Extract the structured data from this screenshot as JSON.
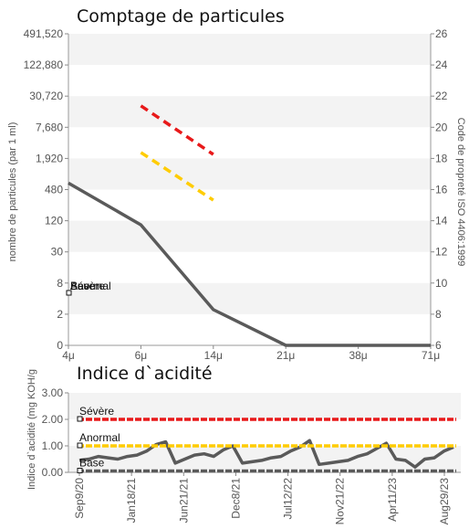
{
  "chart_data": [
    {
      "type": "line",
      "title": "Comptage de particules",
      "ylabel": "nombre de particules (par 1 ml)",
      "ylabel_right": "Code de propreté ISO 4406:1999",
      "categories": [
        "4μ",
        "6μ",
        "14μ",
        "21μ",
        "38μ",
        "71μ"
      ],
      "y_ticks": [
        "491,520",
        "122,880",
        "30,720",
        "7,680",
        "1,920",
        "480",
        "120",
        "30",
        "8",
        "2",
        "0"
      ],
      "y_right_ticks": [
        "26",
        "24",
        "22",
        "20",
        "18",
        "16",
        "14",
        "12",
        "10",
        "8",
        "6"
      ],
      "y_scale": "log4",
      "series": [
        {
          "name": "",
          "color": "#5a5a5a",
          "dashed": false,
          "values": [
            640,
            100,
            2.3,
            0,
            0,
            0
          ]
        },
        {
          "name": "",
          "color": "#e8191a",
          "dashed": true,
          "values": [
            null,
            20000,
            2300,
            null,
            null,
            null
          ]
        },
        {
          "name": "",
          "color": "#ffcc00",
          "dashed": true,
          "values": [
            null,
            2500,
            300,
            null,
            null,
            null
          ]
        }
      ],
      "legend_labels": [
        "Sévère",
        "Anormal",
        "Base"
      ],
      "legend_placement": "left"
    },
    {
      "type": "line",
      "title": "Indice d`acidité",
      "ylabel": "Indice d`acidité (mg KOH/g",
      "ylim": [
        0,
        3
      ],
      "y_ticks": [
        "3.00",
        "2.00",
        "1.00",
        "0.00"
      ],
      "x_ticks": [
        "Sep9/20",
        "Jan18/21",
        "Jun21/21",
        "Dec8/21",
        "Jul12/22",
        "Nov21/22",
        "Apr11/23",
        "Aug29/23"
      ],
      "thresholds": [
        {
          "name": "Sévère",
          "value": 2.0,
          "color": "#e8191a"
        },
        {
          "name": "Anormal",
          "value": 1.0,
          "color": "#ffcc00"
        },
        {
          "name": "Base",
          "value": 0.05,
          "color": "#5a5a5a"
        }
      ],
      "series": [
        {
          "name": "",
          "color": "#5a5a5a",
          "values": [
            0.45,
            0.5,
            0.6,
            0.55,
            0.5,
            0.6,
            0.65,
            0.8,
            1.05,
            1.15,
            0.35,
            0.5,
            0.65,
            0.7,
            0.6,
            0.85,
            1.0,
            0.35,
            0.4,
            0.45,
            0.55,
            0.6,
            0.8,
            0.95,
            1.2,
            0.3,
            0.35,
            0.4,
            0.45,
            0.6,
            0.7,
            0.9,
            1.1,
            0.5,
            0.45,
            0.2,
            0.5,
            0.55,
            0.8,
            0.95
          ]
        }
      ]
    }
  ]
}
